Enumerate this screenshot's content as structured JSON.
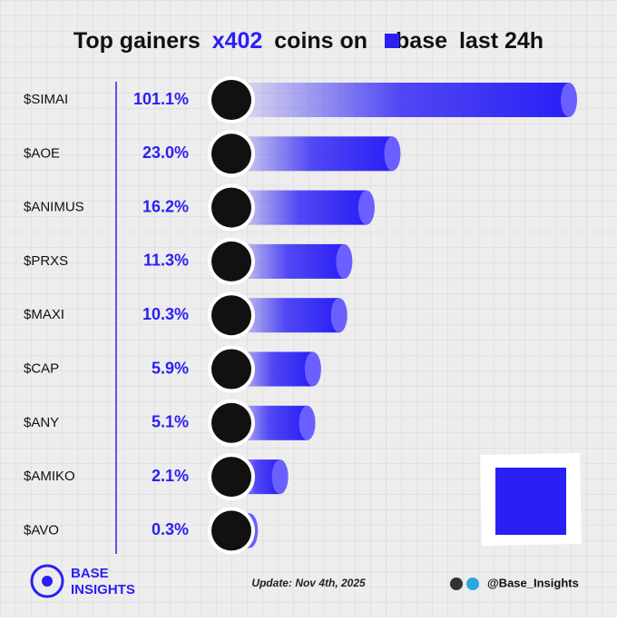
{
  "chart_data": {
    "type": "bar",
    "title": {
      "part1": "Top gainers",
      "part2": "x402",
      "part3": "coins on",
      "part4": "base",
      "part5": "last 24h"
    },
    "categories": [
      "$SIMAI",
      "$AOE",
      "$ANIMUS",
      "$PRXS",
      "$MAXI",
      "$CAP",
      "$ANY",
      "$AMIKO",
      "$AVO"
    ],
    "values": [
      101.1,
      23.0,
      16.2,
      11.3,
      10.3,
      5.9,
      5.1,
      2.1,
      0.3
    ],
    "value_labels": [
      "101.1%",
      "23.0%",
      "16.2%",
      "11.3%",
      "10.3%",
      "5.9%",
      "5.1%",
      "2.1%",
      "0.3%"
    ],
    "color": "#2a1ff5",
    "scale": "sqrt"
  },
  "footer": {
    "brand_line1": "BASE",
    "brand_line2": "INSIGHTS",
    "update": "Update: Nov 4th, 2025",
    "handle": "@Base_Insights"
  }
}
